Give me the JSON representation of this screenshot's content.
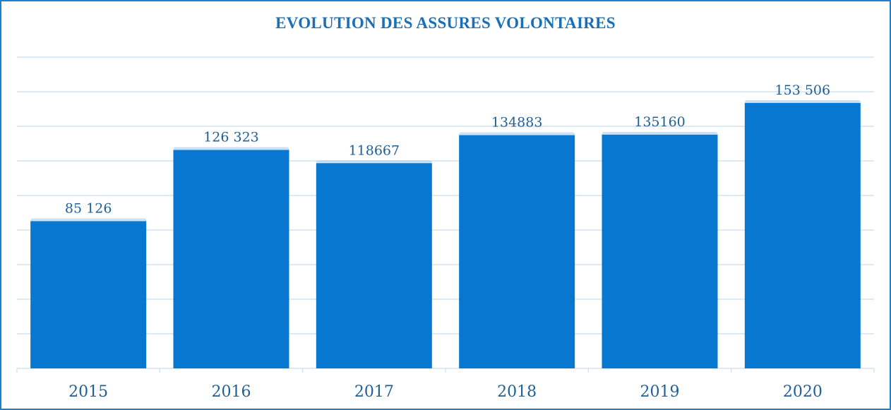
{
  "chart_data": {
    "type": "bar",
    "title": "EVOLUTION DES ASSURES VOLONTAIRES",
    "xlabel": "",
    "ylabel": "",
    "categories": [
      "2015",
      "2016",
      "2017",
      "2018",
      "2019",
      "2020"
    ],
    "values": [
      85126,
      126323,
      118667,
      134883,
      135160,
      153506
    ],
    "data_labels": [
      "85 126",
      "126 323",
      "118667",
      "134883",
      "135160",
      "153 506"
    ],
    "ylim": [
      0,
      180000
    ],
    "grid": true,
    "y_tick_labels_shown": false,
    "legend": "none",
    "colors": {
      "bar": "#0777CF",
      "title": "#1A6FB8",
      "text": "#1F5F96",
      "grid": "#CFE3F2",
      "border": "#1E7FD0"
    }
  }
}
